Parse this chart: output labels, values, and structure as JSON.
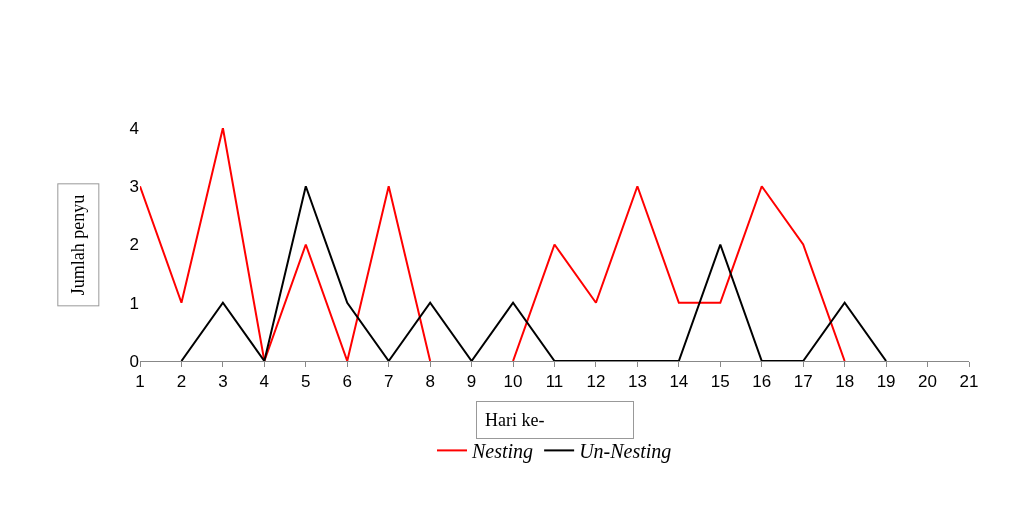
{
  "chart_data": {
    "type": "line",
    "xlabel": "Hari ke-",
    "ylabel": "Jumlah penyu",
    "x": [
      1,
      2,
      3,
      4,
      5,
      6,
      7,
      8,
      9,
      10,
      11,
      12,
      13,
      14,
      15,
      16,
      17,
      18,
      19
    ],
    "series": [
      {
        "name": "Nesting",
        "color": "#ff0000",
        "values": [
          3,
          1,
          4,
          0,
          2,
          0,
          3,
          0,
          null,
          0,
          2,
          1,
          3,
          1,
          1,
          3,
          2,
          0,
          null
        ]
      },
      {
        "name": "Un-Nesting",
        "color": "#000000",
        "values": [
          null,
          0,
          1,
          0,
          3,
          1,
          0,
          1,
          0,
          1,
          0,
          0,
          0,
          0,
          2,
          0,
          0,
          1,
          0
        ]
      }
    ],
    "xlim": [
      1,
      21
    ],
    "xticks": [
      1,
      2,
      3,
      4,
      5,
      6,
      7,
      8,
      9,
      10,
      11,
      12,
      13,
      14,
      15,
      16,
      17,
      18,
      19,
      20,
      21
    ],
    "ylim": [
      0,
      4
    ],
    "yticks": [
      0,
      1,
      2,
      3,
      4
    ],
    "grid": false,
    "legend": "bottom",
    "marker": "none",
    "line_style": "solid"
  }
}
